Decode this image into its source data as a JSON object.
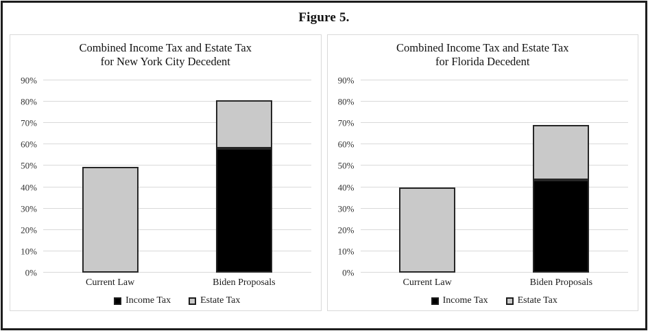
{
  "figure_title": "Figure 5.",
  "colors": {
    "income_tax_fill": "#000000",
    "estate_tax_fill": "#c9c9c9",
    "bar_border": "#262626",
    "gridline": "#d9d9d9",
    "panel_border": "#d9d9d9",
    "frame_border": "#1c1c1c",
    "text": "#111111"
  },
  "chart_data": [
    {
      "type": "bar",
      "stacked": true,
      "title": "Combined Income Tax and Estate Tax for New York City Decedent",
      "title_line1": "Combined Income Tax and Estate Tax",
      "title_line2": "for New York City Decedent",
      "categories": [
        "Current Law",
        "Biden Proposals"
      ],
      "series": [
        {
          "name": "Income Tax",
          "color": "#000000",
          "values": [
            0,
            58.1
          ]
        },
        {
          "name": "Estate Tax",
          "color": "#c9c9c9",
          "values": [
            49.6,
            22.7
          ]
        }
      ],
      "totals": [
        49.6,
        80.8
      ],
      "ylim": [
        0,
        90
      ],
      "yticks": [
        "0%",
        "10%",
        "20%",
        "30%",
        "40%",
        "50%",
        "60%",
        "70%",
        "80%",
        "90%"
      ],
      "grid": true,
      "legend_position": "bottom"
    },
    {
      "type": "bar",
      "stacked": true,
      "title": "Combined Income Tax and Estate Tax for Florida Decedent",
      "title_line1": "Combined Income Tax and Estate Tax",
      "title_line2": "for Florida Decedent",
      "categories": [
        "Current Law",
        "Biden Proposals"
      ],
      "series": [
        {
          "name": "Income Tax",
          "color": "#000000",
          "values": [
            0,
            43.4
          ]
        },
        {
          "name": "Estate Tax",
          "color": "#c9c9c9",
          "values": [
            40,
            25.6
          ]
        }
      ],
      "totals": [
        40,
        69
      ],
      "ylim": [
        0,
        90
      ],
      "yticks": [
        "0%",
        "10%",
        "20%",
        "30%",
        "40%",
        "50%",
        "60%",
        "70%",
        "80%",
        "90%"
      ],
      "grid": true,
      "legend_position": "bottom"
    }
  ]
}
